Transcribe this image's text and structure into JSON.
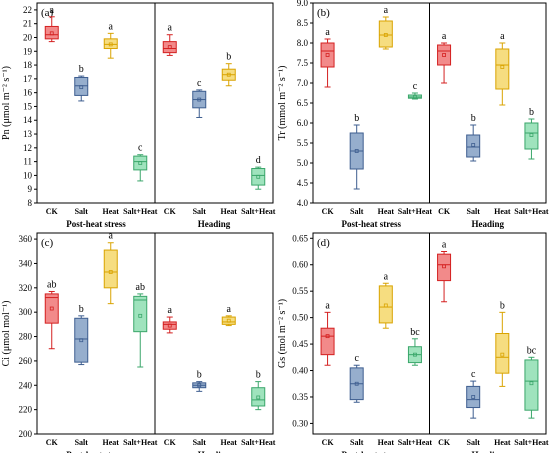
{
  "figure": {
    "panels": [
      {
        "id": "a",
        "panel_label": "(a)",
        "ylabel": "Pn (μmol m⁻² s⁻¹)"
      },
      {
        "id": "b",
        "panel_label": "(b)",
        "ylabel": "Tr (mmol m⁻² s⁻¹)"
      },
      {
        "id": "c",
        "panel_label": "(c)",
        "ylabel": "Ci (μmol mol⁻¹)"
      },
      {
        "id": "d",
        "panel_label": "(d)",
        "ylabel": "Gs (mol m⁻² s⁻¹)"
      }
    ],
    "group_labels": [
      "Post-heat stress",
      "Heading"
    ],
    "treatments": [
      "CK",
      "Salt",
      "Heat",
      "Salt+Heat"
    ]
  },
  "colors": {
    "CK": {
      "stroke": "#d42020",
      "fill": "#f28a8a"
    },
    "Salt": {
      "stroke": "#3d5d8f",
      "fill": "#96aecd"
    },
    "Heat": {
      "stroke": "#d9a300",
      "fill": "#f6dd80"
    },
    "Salt+Heat": {
      "stroke": "#3aa66a",
      "fill": "#9fe3bd"
    }
  },
  "chart_data": [
    {
      "type": "box",
      "panel": "a",
      "ylabel": "Pn (μmol m⁻² s⁻¹)",
      "ylim": [
        8,
        22.5
      ],
      "yticks": [
        8,
        9,
        10,
        11,
        12,
        13,
        14,
        15,
        16,
        17,
        18,
        19,
        20,
        21,
        22
      ],
      "groups": [
        "Post-heat stress",
        "Heading"
      ],
      "categories": [
        "CK",
        "Salt",
        "Heat",
        "Salt+Heat"
      ],
      "boxes": [
        {
          "group": "Post-heat stress",
          "treatment": "CK",
          "min": 19.7,
          "q1": 19.9,
          "median": 20.2,
          "q3": 20.8,
          "max": 21.5,
          "mean": 20.3,
          "letter": "a"
        },
        {
          "group": "Post-heat stress",
          "treatment": "Salt",
          "min": 15.4,
          "q1": 15.8,
          "median": 16.5,
          "q3": 17.1,
          "max": 17.2,
          "mean": 16.4,
          "letter": "b"
        },
        {
          "group": "Post-heat stress",
          "treatment": "Heat",
          "min": 18.5,
          "q1": 19.2,
          "median": 19.5,
          "q3": 19.9,
          "max": 20.3,
          "mean": 19.5,
          "letter": "a"
        },
        {
          "group": "Post-heat stress",
          "treatment": "Salt+Heat",
          "min": 9.6,
          "q1": 10.4,
          "median": 11.0,
          "q3": 11.4,
          "max": 11.5,
          "mean": 10.9,
          "letter": "c"
        },
        {
          "group": "Heading",
          "treatment": "CK",
          "min": 18.7,
          "q1": 18.9,
          "median": 19.2,
          "q3": 19.7,
          "max": 20.2,
          "mean": 19.3,
          "letter": "a"
        },
        {
          "group": "Heading",
          "treatment": "Salt",
          "min": 14.2,
          "q1": 14.9,
          "median": 15.5,
          "q3": 16.1,
          "max": 16.2,
          "mean": 15.5,
          "letter": "c"
        },
        {
          "group": "Heading",
          "treatment": "Heat",
          "min": 16.5,
          "q1": 16.9,
          "median": 17.3,
          "q3": 17.7,
          "max": 18.1,
          "mean": 17.3,
          "letter": "b"
        },
        {
          "group": "Heading",
          "treatment": "Salt+Heat",
          "min": 9.0,
          "q1": 9.3,
          "median": 10.0,
          "q3": 10.5,
          "max": 10.6,
          "mean": 9.9,
          "letter": "d"
        }
      ]
    },
    {
      "type": "box",
      "panel": "b",
      "ylabel": "Tr (mmol m⁻² s⁻¹)",
      "ylim": [
        4.0,
        9.0
      ],
      "yticks": [
        4.0,
        4.5,
        5.0,
        5.5,
        6.0,
        6.5,
        7.0,
        7.5,
        8.0,
        8.5,
        9.0
      ],
      "groups": [
        "Post-heat stress",
        "Heading"
      ],
      "categories": [
        "CK",
        "Salt",
        "Heat",
        "Salt+Heat"
      ],
      "boxes": [
        {
          "group": "Post-heat stress",
          "treatment": "CK",
          "min": 6.9,
          "q1": 7.4,
          "median": 7.8,
          "q3": 8.0,
          "max": 8.1,
          "mean": 7.7,
          "letter": "a"
        },
        {
          "group": "Post-heat stress",
          "treatment": "Salt",
          "min": 4.35,
          "q1": 4.85,
          "median": 5.3,
          "q3": 5.75,
          "max": 5.95,
          "mean": 5.3,
          "letter": "b"
        },
        {
          "group": "Post-heat stress",
          "treatment": "Heat",
          "min": 7.85,
          "q1": 7.9,
          "median": 8.2,
          "q3": 8.55,
          "max": 8.65,
          "mean": 8.2,
          "letter": "a"
        },
        {
          "group": "Post-heat stress",
          "treatment": "Salt+Heat",
          "min": 6.6,
          "q1": 6.62,
          "median": 6.65,
          "q3": 6.7,
          "max": 6.75,
          "mean": 6.65,
          "letter": "c"
        },
        {
          "group": "Heading",
          "treatment": "CK",
          "min": 7.0,
          "q1": 7.45,
          "median": 7.8,
          "q3": 7.95,
          "max": 8.0,
          "mean": 7.7,
          "letter": "a"
        },
        {
          "group": "Heading",
          "treatment": "Salt",
          "min": 5.05,
          "q1": 5.15,
          "median": 5.4,
          "q3": 5.7,
          "max": 5.95,
          "mean": 5.45,
          "letter": "b"
        },
        {
          "group": "Heading",
          "treatment": "Heat",
          "min": 6.45,
          "q1": 6.85,
          "median": 7.45,
          "q3": 7.85,
          "max": 8.0,
          "mean": 7.4,
          "letter": "a"
        },
        {
          "group": "Heading",
          "treatment": "Salt+Heat",
          "min": 5.1,
          "q1": 5.35,
          "median": 5.75,
          "q3": 6.0,
          "max": 6.1,
          "mean": 5.7,
          "letter": "b"
        }
      ]
    },
    {
      "type": "box",
      "panel": "c",
      "ylabel": "Ci (μmol mol⁻¹)",
      "ylim": [
        200,
        365
      ],
      "yticks": [
        200,
        220,
        240,
        260,
        280,
        300,
        320,
        340,
        360
      ],
      "groups": [
        "Post-heat stress",
        "Heading"
      ],
      "categories": [
        "CK",
        "Salt",
        "Heat",
        "Salt+Heat"
      ],
      "boxes": [
        {
          "group": "Post-heat stress",
          "treatment": "CK",
          "min": 270,
          "q1": 291,
          "median": 312,
          "q3": 315,
          "max": 317,
          "mean": 303,
          "letter": "ab"
        },
        {
          "group": "Post-heat stress",
          "treatment": "Salt",
          "min": 257,
          "q1": 259,
          "median": 278,
          "q3": 295,
          "max": 297,
          "mean": 277,
          "letter": "b"
        },
        {
          "group": "Post-heat stress",
          "treatment": "Heat",
          "min": 307,
          "q1": 320,
          "median": 333,
          "q3": 351,
          "max": 357,
          "mean": 333,
          "letter": "a"
        },
        {
          "group": "Post-heat stress",
          "treatment": "Salt+Heat",
          "min": 255,
          "q1": 284,
          "median": 310,
          "q3": 313,
          "max": 315,
          "mean": 297,
          "letter": "ab"
        },
        {
          "group": "Heading",
          "treatment": "CK",
          "min": 283,
          "q1": 286,
          "median": 290,
          "q3": 292,
          "max": 296,
          "mean": 289,
          "letter": "a"
        },
        {
          "group": "Heading",
          "treatment": "Salt",
          "min": 235,
          "q1": 238,
          "median": 240,
          "q3": 242,
          "max": 243,
          "mean": 240,
          "letter": "b"
        },
        {
          "group": "Heading",
          "treatment": "Heat",
          "min": 289,
          "q1": 290,
          "median": 292,
          "q3": 296,
          "max": 297,
          "mean": 293,
          "letter": "a"
        },
        {
          "group": "Heading",
          "treatment": "Salt+Heat",
          "min": 220,
          "q1": 223,
          "median": 228,
          "q3": 238,
          "max": 243,
          "mean": 230,
          "letter": "b"
        }
      ]
    },
    {
      "type": "box",
      "panel": "d",
      "ylabel": "Gs (mol m⁻² s⁻¹)",
      "ylim": [
        0.28,
        0.66
      ],
      "yticks": [
        0.3,
        0.35,
        0.4,
        0.45,
        0.5,
        0.55,
        0.6,
        0.65
      ],
      "groups": [
        "Post-heat stress",
        "Heading"
      ],
      "categories": [
        "CK",
        "Salt",
        "Heat",
        "Salt+Heat"
      ],
      "boxes": [
        {
          "group": "Post-heat stress",
          "treatment": "CK",
          "min": 0.41,
          "q1": 0.43,
          "median": 0.465,
          "q3": 0.48,
          "max": 0.51,
          "mean": 0.465,
          "letter": "a"
        },
        {
          "group": "Post-heat stress",
          "treatment": "Salt",
          "min": 0.34,
          "q1": 0.345,
          "median": 0.375,
          "q3": 0.405,
          "max": 0.41,
          "mean": 0.375,
          "letter": "c"
        },
        {
          "group": "Post-heat stress",
          "treatment": "Heat",
          "min": 0.48,
          "q1": 0.49,
          "median": 0.52,
          "q3": 0.56,
          "max": 0.565,
          "mean": 0.523,
          "letter": "a"
        },
        {
          "group": "Post-heat stress",
          "treatment": "Salt+Heat",
          "min": 0.41,
          "q1": 0.415,
          "median": 0.43,
          "q3": 0.445,
          "max": 0.46,
          "mean": 0.43,
          "letter": "bc"
        },
        {
          "group": "Heading",
          "treatment": "CK",
          "min": 0.53,
          "q1": 0.57,
          "median": 0.6,
          "q3": 0.62,
          "max": 0.625,
          "mean": 0.597,
          "letter": "a"
        },
        {
          "group": "Heading",
          "treatment": "Salt",
          "min": 0.31,
          "q1": 0.33,
          "median": 0.345,
          "q3": 0.37,
          "max": 0.38,
          "mean": 0.35,
          "letter": "c"
        },
        {
          "group": "Heading",
          "treatment": "Heat",
          "min": 0.37,
          "q1": 0.395,
          "median": 0.425,
          "q3": 0.47,
          "max": 0.51,
          "mean": 0.43,
          "letter": "b"
        },
        {
          "group": "Heading",
          "treatment": "Salt+Heat",
          "min": 0.31,
          "q1": 0.325,
          "median": 0.38,
          "q3": 0.42,
          "max": 0.425,
          "mean": 0.376,
          "letter": "bc"
        }
      ]
    }
  ]
}
